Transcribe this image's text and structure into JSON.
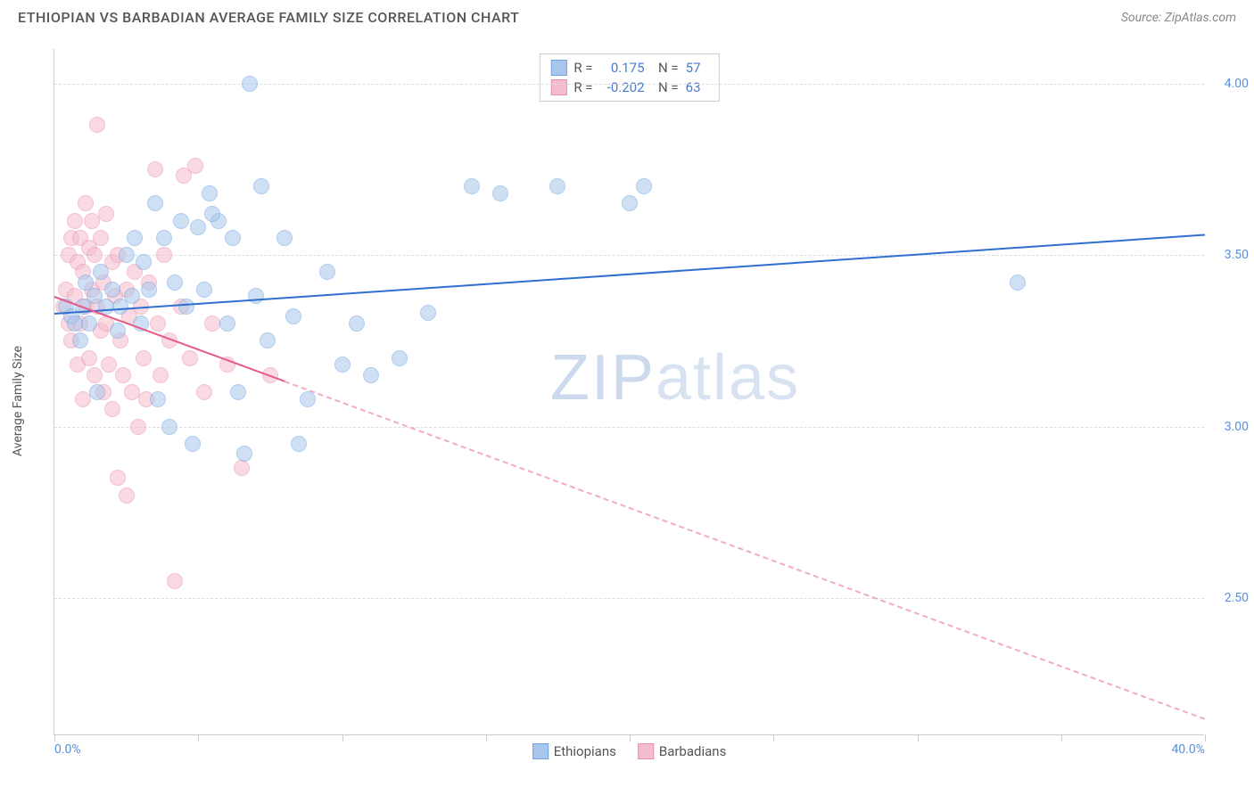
{
  "header": {
    "title": "ETHIOPIAN VS BARBADIAN AVERAGE FAMILY SIZE CORRELATION CHART",
    "source": "Source: ZipAtlas.com"
  },
  "watermark": {
    "bold": "ZIP",
    "light": "atlas"
  },
  "chart": {
    "type": "scatter",
    "y_axis_label": "Average Family Size",
    "xlim": [
      0,
      40
    ],
    "ylim": [
      2.1,
      4.1
    ],
    "x_tick_labels": {
      "min": "0.0%",
      "max": "40.0%"
    },
    "x_ticks_pct": [
      0,
      5,
      10,
      15,
      20,
      25,
      30,
      35,
      40
    ],
    "y_gridlines": [
      2.5,
      3.0,
      3.5,
      4.0
    ],
    "y_tick_labels": [
      "2.50",
      "3.00",
      "3.50",
      "4.00"
    ],
    "background_color": "#ffffff",
    "grid_color": "#dddddd",
    "axis_color": "#cccccc",
    "tick_label_color": "#5b8fd6",
    "marker_radius": 9,
    "marker_opacity": 0.55,
    "series": [
      {
        "name": "Ethiopians",
        "color_fill": "#a9c7ec",
        "color_stroke": "#6fa3e0",
        "trend_color": "#2f6fd0",
        "trend_solid_end_x": 40,
        "trend": {
          "x1": 0,
          "y1": 3.33,
          "x2": 40,
          "y2": 3.56
        },
        "R": "0.175",
        "N": "57",
        "points": [
          [
            0.4,
            3.35
          ],
          [
            0.6,
            3.32
          ],
          [
            0.7,
            3.3
          ],
          [
            0.9,
            3.25
          ],
          [
            1.0,
            3.35
          ],
          [
            1.1,
            3.42
          ],
          [
            1.2,
            3.3
          ],
          [
            1.4,
            3.38
          ],
          [
            1.5,
            3.1
          ],
          [
            1.6,
            3.45
          ],
          [
            1.8,
            3.35
          ],
          [
            2.0,
            3.4
          ],
          [
            2.2,
            3.28
          ],
          [
            2.3,
            3.35
          ],
          [
            2.5,
            3.5
          ],
          [
            2.7,
            3.38
          ],
          [
            2.8,
            3.55
          ],
          [
            3.0,
            3.3
          ],
          [
            3.1,
            3.48
          ],
          [
            3.3,
            3.4
          ],
          [
            3.5,
            3.65
          ],
          [
            3.6,
            3.08
          ],
          [
            3.8,
            3.55
          ],
          [
            4.0,
            3.0
          ],
          [
            4.2,
            3.42
          ],
          [
            4.4,
            3.6
          ],
          [
            4.6,
            3.35
          ],
          [
            4.8,
            2.95
          ],
          [
            5.0,
            3.58
          ],
          [
            5.2,
            3.4
          ],
          [
            5.4,
            3.68
          ],
          [
            5.7,
            3.6
          ],
          [
            5.5,
            3.62
          ],
          [
            6.0,
            3.3
          ],
          [
            6.2,
            3.55
          ],
          [
            6.4,
            3.1
          ],
          [
            6.6,
            2.92
          ],
          [
            6.8,
            4.0
          ],
          [
            7.0,
            3.38
          ],
          [
            7.2,
            3.7
          ],
          [
            7.4,
            3.25
          ],
          [
            8.0,
            3.55
          ],
          [
            8.3,
            3.32
          ],
          [
            8.5,
            2.95
          ],
          [
            8.8,
            3.08
          ],
          [
            9.5,
            3.45
          ],
          [
            10.0,
            3.18
          ],
          [
            10.5,
            3.3
          ],
          [
            11.0,
            3.15
          ],
          [
            12.0,
            3.2
          ],
          [
            13.0,
            3.33
          ],
          [
            14.5,
            3.7
          ],
          [
            15.5,
            3.68
          ],
          [
            17.5,
            3.7
          ],
          [
            20.0,
            3.65
          ],
          [
            20.5,
            3.7
          ],
          [
            33.5,
            3.42
          ]
        ]
      },
      {
        "name": "Barbadians",
        "color_fill": "#f5bccd",
        "color_stroke": "#ec8fab",
        "trend_color": "#e65a87",
        "trend_solid_end_x": 8,
        "trend": {
          "x1": 0,
          "y1": 3.38,
          "x2": 40,
          "y2": 2.15
        },
        "R": "-0.202",
        "N": "63",
        "points": [
          [
            0.3,
            3.35
          ],
          [
            0.4,
            3.4
          ],
          [
            0.5,
            3.5
          ],
          [
            0.5,
            3.3
          ],
          [
            0.6,
            3.55
          ],
          [
            0.6,
            3.25
          ],
          [
            0.7,
            3.6
          ],
          [
            0.7,
            3.38
          ],
          [
            0.8,
            3.48
          ],
          [
            0.8,
            3.18
          ],
          [
            0.9,
            3.55
          ],
          [
            0.9,
            3.3
          ],
          [
            1.0,
            3.45
          ],
          [
            1.0,
            3.08
          ],
          [
            1.1,
            3.65
          ],
          [
            1.1,
            3.35
          ],
          [
            1.2,
            3.52
          ],
          [
            1.2,
            3.2
          ],
          [
            1.3,
            3.4
          ],
          [
            1.3,
            3.6
          ],
          [
            1.4,
            3.15
          ],
          [
            1.4,
            3.5
          ],
          [
            1.5,
            3.35
          ],
          [
            1.5,
            3.88
          ],
          [
            1.6,
            3.28
          ],
          [
            1.6,
            3.55
          ],
          [
            1.7,
            3.1
          ],
          [
            1.7,
            3.42
          ],
          [
            1.8,
            3.3
          ],
          [
            1.8,
            3.62
          ],
          [
            1.9,
            3.18
          ],
          [
            2.0,
            3.48
          ],
          [
            2.0,
            3.05
          ],
          [
            2.1,
            3.38
          ],
          [
            2.2,
            2.85
          ],
          [
            2.2,
            3.5
          ],
          [
            2.3,
            3.25
          ],
          [
            2.4,
            3.15
          ],
          [
            2.5,
            3.4
          ],
          [
            2.5,
            2.8
          ],
          [
            2.6,
            3.32
          ],
          [
            2.7,
            3.1
          ],
          [
            2.8,
            3.45
          ],
          [
            2.9,
            3.0
          ],
          [
            3.0,
            3.35
          ],
          [
            3.1,
            3.2
          ],
          [
            3.2,
            3.08
          ],
          [
            3.3,
            3.42
          ],
          [
            3.5,
            3.75
          ],
          [
            3.6,
            3.3
          ],
          [
            3.7,
            3.15
          ],
          [
            3.8,
            3.5
          ],
          [
            4.0,
            3.25
          ],
          [
            4.2,
            2.55
          ],
          [
            4.4,
            3.35
          ],
          [
            4.5,
            3.73
          ],
          [
            4.7,
            3.2
          ],
          [
            4.9,
            3.76
          ],
          [
            5.2,
            3.1
          ],
          [
            5.5,
            3.3
          ],
          [
            6.0,
            3.18
          ],
          [
            6.5,
            2.88
          ],
          [
            7.5,
            3.15
          ]
        ]
      }
    ],
    "legend": {
      "items": [
        "Ethiopians",
        "Barbadians"
      ]
    }
  }
}
